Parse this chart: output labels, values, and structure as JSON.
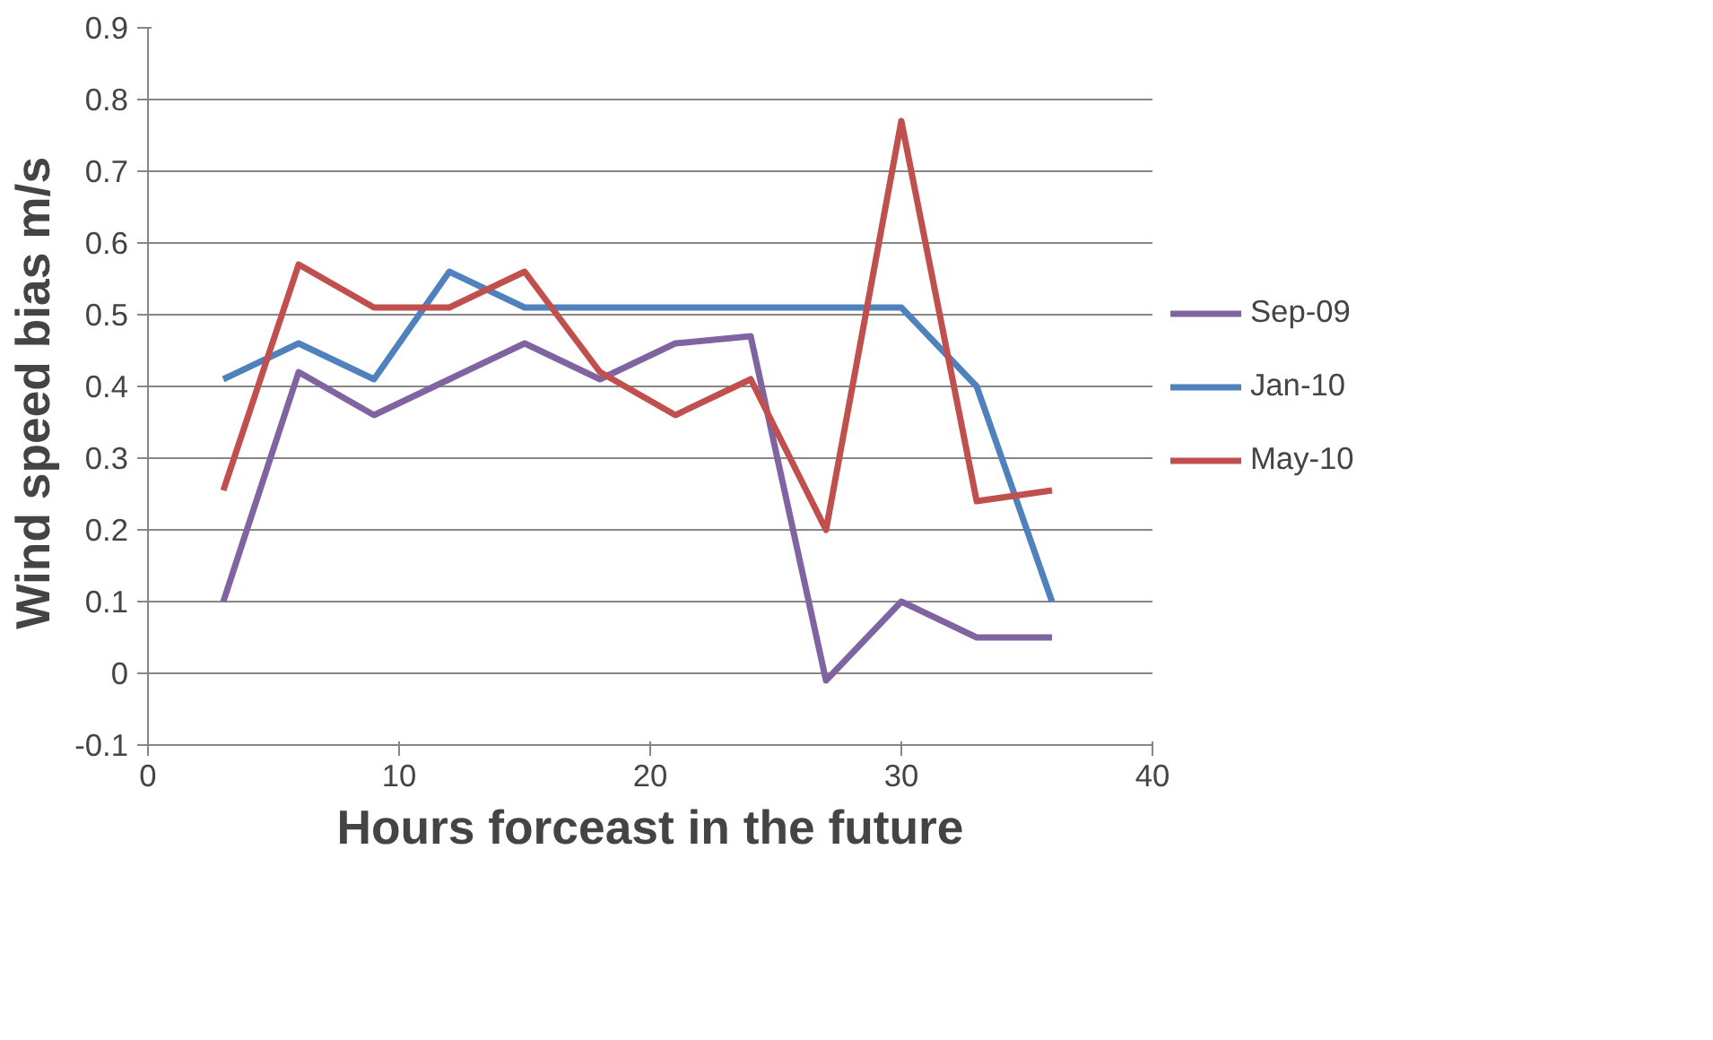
{
  "chart_data": {
    "type": "line",
    "xlabel": "Hours forceast in the future",
    "ylabel": "Wind speed bias  m/s",
    "x": [
      3,
      6,
      9,
      12,
      15,
      18,
      21,
      24,
      27,
      30,
      33,
      36
    ],
    "series": [
      {
        "name": "Sep-09",
        "color": "#8064a2",
        "values": [
          0.1,
          0.42,
          0.36,
          0.41,
          0.46,
          0.41,
          0.46,
          0.47,
          -0.01,
          0.1,
          0.05,
          0.05
        ]
      },
      {
        "name": "Jan-10",
        "color": "#4f81bd",
        "values": [
          0.41,
          0.46,
          0.41,
          0.56,
          0.51,
          0.51,
          0.51,
          0.51,
          0.51,
          0.51,
          0.4,
          0.1
        ]
      },
      {
        "name": "May-10",
        "color": "#c0504d",
        "values": [
          0.255,
          0.57,
          0.51,
          0.51,
          0.56,
          0.42,
          0.36,
          0.41,
          0.2,
          0.77,
          0.24,
          0.255
        ]
      }
    ],
    "xlim": [
      0,
      40
    ],
    "xticks": [
      0,
      10,
      20,
      30,
      40
    ],
    "ylim": [
      -0.1,
      0.9
    ],
    "yticks": [
      -0.1,
      0,
      0.1,
      0.2,
      0.3,
      0.4,
      0.5,
      0.6,
      0.7,
      0.8,
      0.9
    ],
    "grid": "y",
    "legend": "right",
    "marker": "none",
    "line_style": "solid"
  }
}
